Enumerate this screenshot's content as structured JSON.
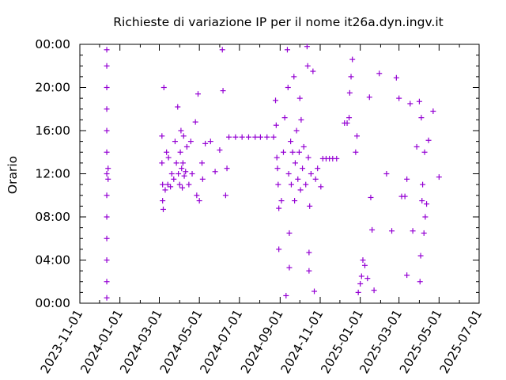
{
  "chart_data": {
    "type": "scatter",
    "title": "Richieste di variazione IP per il nome it26a.dyn.ingv.it",
    "xlabel": "",
    "ylabel": "Orario",
    "x_type": "date",
    "xlim": [
      "2023-11-01",
      "2025-07-01"
    ],
    "x_ticks": [
      "2023-11-01",
      "2024-01-01",
      "2024-03-01",
      "2024-05-01",
      "2024-07-01",
      "2024-09-01",
      "2024-11-01",
      "2025-01-01",
      "2025-03-01",
      "2025-05-01",
      "2025-07-01"
    ],
    "y_unit": "hours",
    "ylim": [
      0,
      24
    ],
    "y_ticks": [
      0,
      4,
      8,
      12,
      16,
      20,
      24
    ],
    "y_tick_labels": [
      "00:00",
      "04:00",
      "08:00",
      "12:00",
      "16:00",
      "20:00",
      "00:00"
    ],
    "grid": false,
    "marker": "+",
    "color": "#9400d3",
    "series": [
      {
        "points": [
          [
            "2023-12-12",
            23.5
          ],
          [
            "2023-12-12",
            22.0
          ],
          [
            "2023-12-12",
            20.0
          ],
          [
            "2023-12-12",
            18.0
          ],
          [
            "2023-12-12",
            16.0
          ],
          [
            "2023-12-12",
            14.0
          ],
          [
            "2023-12-12",
            12.0
          ],
          [
            "2023-12-12",
            10.0
          ],
          [
            "2023-12-12",
            8.0
          ],
          [
            "2023-12-12",
            6.0
          ],
          [
            "2023-12-12",
            4.0
          ],
          [
            "2023-12-12",
            2.0
          ],
          [
            "2023-12-12",
            0.5
          ],
          [
            "2023-12-14",
            12.5
          ],
          [
            "2023-12-14",
            11.5
          ],
          [
            "2024-03-05",
            15.5
          ],
          [
            "2024-03-05",
            13.0
          ],
          [
            "2024-03-06",
            11.0
          ],
          [
            "2024-03-06",
            9.5
          ],
          [
            "2024-03-07",
            8.7
          ],
          [
            "2024-03-08",
            20.0
          ],
          [
            "2024-03-10",
            10.5
          ],
          [
            "2024-03-12",
            14.0
          ],
          [
            "2024-03-14",
            11.0
          ],
          [
            "2024-03-15",
            13.5
          ],
          [
            "2024-03-18",
            10.8
          ],
          [
            "2024-03-20",
            12.0
          ],
          [
            "2024-03-23",
            11.5
          ],
          [
            "2024-03-25",
            15.0
          ],
          [
            "2024-03-27",
            13.0
          ],
          [
            "2024-03-29",
            18.2
          ],
          [
            "2024-03-30",
            12.0
          ],
          [
            "2024-04-01",
            11.0
          ],
          [
            "2024-04-02",
            14.0
          ],
          [
            "2024-04-03",
            16.0
          ],
          [
            "2024-04-04",
            12.5
          ],
          [
            "2024-04-05",
            10.7
          ],
          [
            "2024-04-06",
            13.0
          ],
          [
            "2024-04-07",
            15.5
          ],
          [
            "2024-04-08",
            11.8
          ],
          [
            "2024-04-10",
            12.2
          ],
          [
            "2024-04-12",
            14.5
          ],
          [
            "2024-04-15",
            11.0
          ],
          [
            "2024-04-18",
            15.0
          ],
          [
            "2024-04-20",
            12.0
          ],
          [
            "2024-04-25",
            16.8
          ],
          [
            "2024-04-27",
            10.0
          ],
          [
            "2024-04-29",
            19.4
          ],
          [
            "2024-05-01",
            9.5
          ],
          [
            "2024-05-05",
            13.0
          ],
          [
            "2024-05-06",
            11.5
          ],
          [
            "2024-05-10",
            14.8
          ],
          [
            "2024-05-18",
            15.0
          ],
          [
            "2024-05-25",
            12.2
          ],
          [
            "2024-06-01",
            14.2
          ],
          [
            "2024-06-05",
            23.5
          ],
          [
            "2024-06-06",
            19.7
          ],
          [
            "2024-06-10",
            10.0
          ],
          [
            "2024-06-12",
            12.5
          ],
          [
            "2024-06-15",
            15.4
          ],
          [
            "2024-06-25",
            15.4
          ],
          [
            "2024-07-05",
            15.4
          ],
          [
            "2024-07-15",
            15.4
          ],
          [
            "2024-07-25",
            15.4
          ],
          [
            "2024-08-02",
            15.4
          ],
          [
            "2024-08-12",
            15.4
          ],
          [
            "2024-08-22",
            15.4
          ],
          [
            "2024-08-25",
            18.8
          ],
          [
            "2024-08-26",
            16.5
          ],
          [
            "2024-08-27",
            13.5
          ],
          [
            "2024-08-28",
            12.5
          ],
          [
            "2024-08-29",
            11.0
          ],
          [
            "2024-08-30",
            8.8
          ],
          [
            "2024-08-30",
            5.0
          ],
          [
            "2024-09-03",
            9.5
          ],
          [
            "2024-09-06",
            14.0
          ],
          [
            "2024-09-08",
            17.2
          ],
          [
            "2024-09-10",
            0.7
          ],
          [
            "2024-09-12",
            23.5
          ],
          [
            "2024-09-13",
            20.0
          ],
          [
            "2024-09-14",
            12.0
          ],
          [
            "2024-09-15",
            6.5
          ],
          [
            "2024-09-15",
            3.3
          ],
          [
            "2024-09-17",
            15.0
          ],
          [
            "2024-09-18",
            11.0
          ],
          [
            "2024-09-20",
            14.0
          ],
          [
            "2024-09-22",
            21.0
          ],
          [
            "2024-09-23",
            9.5
          ],
          [
            "2024-09-24",
            13.0
          ],
          [
            "2024-09-26",
            16.0
          ],
          [
            "2024-09-28",
            11.5
          ],
          [
            "2024-09-30",
            14.0
          ],
          [
            "2024-10-01",
            19.0
          ],
          [
            "2024-10-02",
            10.5
          ],
          [
            "2024-10-03",
            17.0
          ],
          [
            "2024-10-05",
            12.5
          ],
          [
            "2024-10-07",
            14.5
          ],
          [
            "2024-10-10",
            11.0
          ],
          [
            "2024-10-12",
            23.8
          ],
          [
            "2024-10-13",
            22.0
          ],
          [
            "2024-10-14",
            13.5
          ],
          [
            "2024-10-15",
            4.7
          ],
          [
            "2024-10-15",
            3.0
          ],
          [
            "2024-10-16",
            9.0
          ],
          [
            "2024-10-18",
            12.0
          ],
          [
            "2024-10-21",
            21.5
          ],
          [
            "2024-10-23",
            1.1
          ],
          [
            "2024-10-25",
            11.5
          ],
          [
            "2024-10-28",
            12.5
          ],
          [
            "2024-11-02",
            10.8
          ],
          [
            "2024-11-05",
            13.4
          ],
          [
            "2024-11-10",
            13.4
          ],
          [
            "2024-11-15",
            13.4
          ],
          [
            "2024-11-20",
            13.4
          ],
          [
            "2024-11-26",
            13.4
          ],
          [
            "2024-12-08",
            16.7
          ],
          [
            "2024-12-12",
            16.7
          ],
          [
            "2024-12-15",
            17.2
          ],
          [
            "2024-12-16",
            19.5
          ],
          [
            "2024-12-18",
            21.0
          ],
          [
            "2024-12-20",
            22.6
          ],
          [
            "2024-12-25",
            14.0
          ],
          [
            "2024-12-27",
            15.5
          ],
          [
            "2024-12-29",
            1.0
          ],
          [
            "2025-01-01",
            1.8
          ],
          [
            "2025-01-03",
            2.5
          ],
          [
            "2025-01-05",
            4.0
          ],
          [
            "2025-01-08",
            3.5
          ],
          [
            "2025-01-12",
            2.3
          ],
          [
            "2025-01-15",
            19.1
          ],
          [
            "2025-01-17",
            9.8
          ],
          [
            "2025-01-19",
            6.8
          ],
          [
            "2025-01-22",
            1.2
          ],
          [
            "2025-01-30",
            21.3
          ],
          [
            "2025-02-10",
            12.0
          ],
          [
            "2025-02-18",
            6.7
          ],
          [
            "2025-02-25",
            20.9
          ],
          [
            "2025-03-01",
            19.0
          ],
          [
            "2025-03-05",
            9.9
          ],
          [
            "2025-03-10",
            9.9
          ],
          [
            "2025-03-13",
            11.5
          ],
          [
            "2025-03-13",
            2.6
          ],
          [
            "2025-03-18",
            18.5
          ],
          [
            "2025-03-22",
            6.7
          ],
          [
            "2025-03-28",
            14.5
          ],
          [
            "2025-04-01",
            18.7
          ],
          [
            "2025-04-02",
            2.0
          ],
          [
            "2025-04-03",
            4.4
          ],
          [
            "2025-04-04",
            17.2
          ],
          [
            "2025-04-05",
            9.5
          ],
          [
            "2025-04-06",
            11.0
          ],
          [
            "2025-04-08",
            6.5
          ],
          [
            "2025-04-09",
            14.0
          ],
          [
            "2025-04-10",
            8.0
          ],
          [
            "2025-04-12",
            9.2
          ],
          [
            "2025-04-15",
            15.1
          ],
          [
            "2025-04-22",
            17.8
          ],
          [
            "2025-05-01",
            11.7
          ]
        ]
      }
    ]
  }
}
